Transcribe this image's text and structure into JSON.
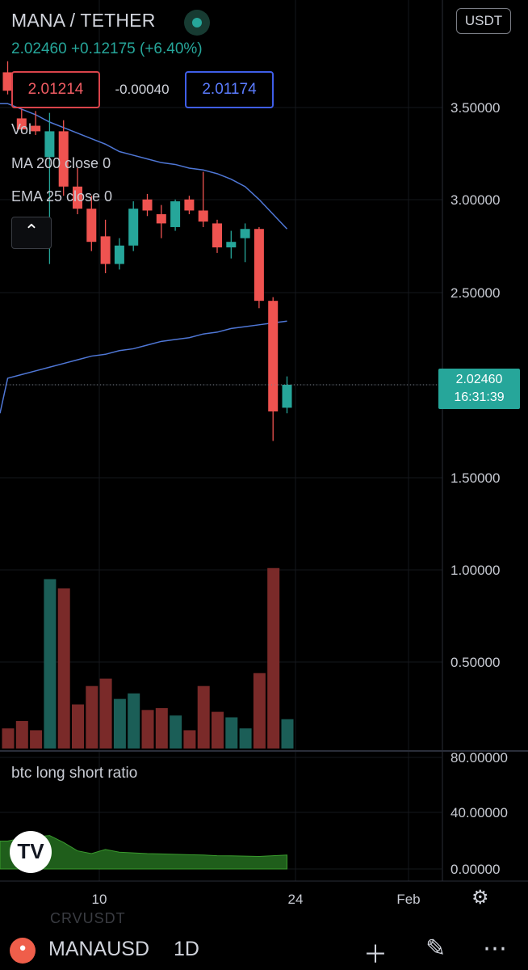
{
  "header": {
    "symbol_title": "MANA / TETHER",
    "price_change": "2.02460  +0.12175 (+6.40%)",
    "bid": "2.01214",
    "spread": "-0.00040",
    "ask": "2.01174",
    "currency_badge": "USDT"
  },
  "legend": {
    "vol": "Vol",
    "ma": "MA 200 close 0",
    "ema": "EMA 25 close 0",
    "collapse_icon": "chevron-up-icon"
  },
  "price_tag": {
    "price": "2.02460",
    "countdown": "16:31:39"
  },
  "colors": {
    "up": "#26a69a",
    "down": "#ef5350",
    "ma_line": "#4f77d6",
    "indicator_fill": "#1f5e1b"
  },
  "chart_data": {
    "type": "candlestick",
    "price_axis": {
      "ticks": [
        "3.50000",
        "3.00000",
        "2.50000",
        "1.50000",
        "1.00000",
        "0.50000"
      ],
      "range": [
        0.2,
        3.9
      ]
    },
    "time_axis": {
      "ticks": [
        "10",
        "24",
        "Feb"
      ]
    },
    "last_price": 2.0246,
    "candles": [
      {
        "o": 3.72,
        "h": 3.78,
        "l": 3.6,
        "c": 3.62
      },
      {
        "o": 3.47,
        "h": 3.52,
        "l": 3.39,
        "c": 3.41
      },
      {
        "o": 3.43,
        "h": 3.51,
        "l": 3.38,
        "c": 3.4
      },
      {
        "o": 3.26,
        "h": 3.5,
        "l": 2.68,
        "c": 3.4
      },
      {
        "o": 3.4,
        "h": 3.46,
        "l": 3.05,
        "c": 3.1
      },
      {
        "o": 3.1,
        "h": 3.2,
        "l": 2.95,
        "c": 2.98
      },
      {
        "o": 2.98,
        "h": 3.05,
        "l": 2.75,
        "c": 2.8
      },
      {
        "o": 2.83,
        "h": 2.92,
        "l": 2.63,
        "c": 2.68
      },
      {
        "o": 2.68,
        "h": 2.82,
        "l": 2.65,
        "c": 2.78
      },
      {
        "o": 2.78,
        "h": 3.02,
        "l": 2.75,
        "c": 2.98
      },
      {
        "o": 3.03,
        "h": 3.06,
        "l": 2.94,
        "c": 2.97
      },
      {
        "o": 2.95,
        "h": 3.0,
        "l": 2.82,
        "c": 2.9
      },
      {
        "o": 2.88,
        "h": 3.03,
        "l": 2.86,
        "c": 3.02
      },
      {
        "o": 3.03,
        "h": 3.05,
        "l": 2.95,
        "c": 2.97
      },
      {
        "o": 2.97,
        "h": 3.18,
        "l": 2.88,
        "c": 2.91
      },
      {
        "o": 2.9,
        "h": 2.92,
        "l": 2.74,
        "c": 2.77
      },
      {
        "o": 2.77,
        "h": 2.86,
        "l": 2.71,
        "c": 2.8
      },
      {
        "o": 2.82,
        "h": 2.9,
        "l": 2.69,
        "c": 2.87
      },
      {
        "o": 2.87,
        "h": 2.88,
        "l": 2.44,
        "c": 2.48
      },
      {
        "o": 2.48,
        "h": 2.5,
        "l": 1.72,
        "c": 1.88
      },
      {
        "o": 1.9,
        "h": 2.07,
        "l": 1.87,
        "c": 2.0246
      }
    ],
    "volume": [
      0.16,
      0.2,
      0.15,
      0.97,
      0.92,
      0.29,
      0.39,
      0.43,
      0.32,
      0.35,
      0.26,
      0.27,
      0.23,
      0.15,
      0.39,
      0.25,
      0.22,
      0.16,
      0.46,
      1.03,
      0.21
    ],
    "ma200": [
      2.06,
      2.08,
      2.1,
      2.12,
      2.14,
      2.16,
      2.18,
      2.19,
      2.21,
      2.22,
      2.24,
      2.26,
      2.27,
      2.28,
      2.3,
      2.31,
      2.33,
      2.34,
      2.35,
      2.36,
      2.37
    ],
    "ema25": [
      3.55,
      3.52,
      3.49,
      3.45,
      3.42,
      3.39,
      3.36,
      3.33,
      3.29,
      3.27,
      3.25,
      3.23,
      3.22,
      3.2,
      3.19,
      3.17,
      3.14,
      3.1,
      3.03,
      2.95,
      2.87
    ]
  },
  "subchart": {
    "title": "btc long short ratio",
    "axis_ticks": [
      "80.00000",
      "40.00000",
      "0.00000"
    ],
    "range": [
      0,
      80
    ],
    "values": [
      20,
      22,
      23,
      24,
      19,
      13,
      11,
      14,
      12,
      11.5,
      11,
      10.8,
      10.5,
      10.2,
      10,
      9.5,
      9.4,
      9.2,
      9.0,
      9.5,
      10
    ]
  },
  "bottom_bar": {
    "ghost_label": "CRVUSDT",
    "symbol": "MANAUSD",
    "interval": "1D",
    "plus_icon": "plus-icon",
    "draw_icon": "pencil-icon",
    "more_icon": "more-icon"
  },
  "settings_icon": "gear-icon"
}
